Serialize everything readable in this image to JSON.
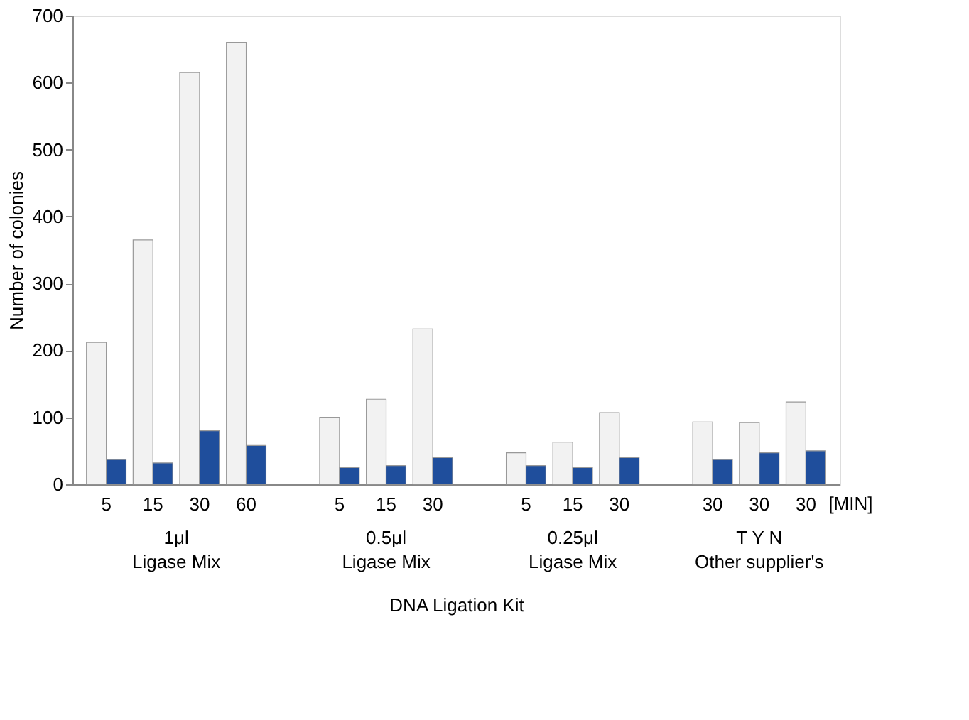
{
  "chart_data": {
    "type": "bar",
    "categories": [
      "5",
      "15",
      "30",
      "60",
      null,
      "5",
      "15",
      "30",
      null,
      "5",
      "15",
      "30",
      null,
      "30",
      "30",
      "30"
    ],
    "series": [
      {
        "color": "#f2f2f2",
        "values": [
          212,
          365,
          615,
          660,
          null,
          100,
          127,
          232,
          null,
          47,
          63,
          107,
          null,
          93,
          92,
          123
        ]
      },
      {
        "color": "#1f4e9c",
        "values": [
          37,
          32,
          80,
          58,
          null,
          25,
          28,
          40,
          null,
          28,
          25,
          40,
          null,
          37,
          47,
          50
        ]
      }
    ],
    "ylabel": "Number of colonies",
    "xlabel": "DNA Ligation Kit",
    "ylim": [
      0,
      700
    ],
    "yticks": [
      0,
      100,
      200,
      300,
      400,
      500,
      600,
      700
    ],
    "grid": false,
    "legend": false,
    "annotations": [
      "1μl\nLigase Mix",
      "0.5μl\nLigase Mix",
      "0.25μl\nLigase Mix",
      "T     Y     N\nOther supplier's",
      "[MIN]"
    ]
  }
}
